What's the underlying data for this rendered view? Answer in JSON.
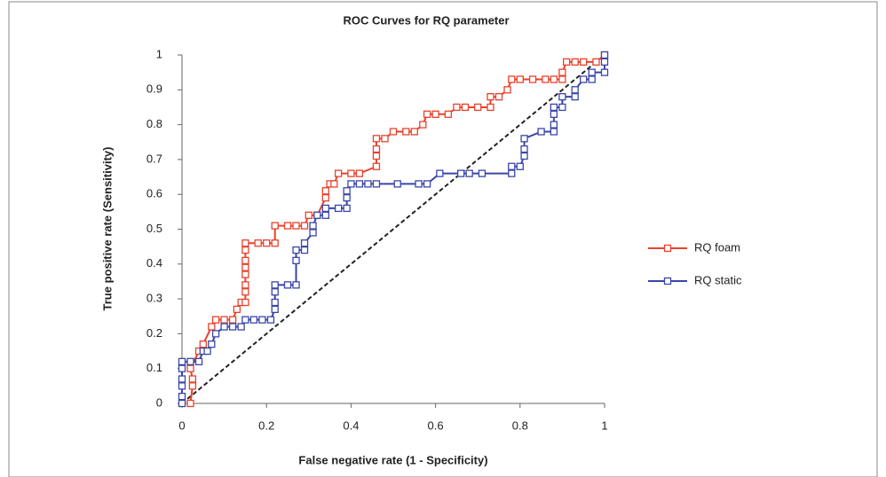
{
  "chart_data": {
    "type": "line",
    "title": "ROC Curves for RQ parameter",
    "x_label": "False negative rate (1 - Specificity)",
    "y_label": "True positive rate (Sensitivity)",
    "xlim": [
      0,
      1
    ],
    "ylim": [
      0,
      1
    ],
    "xticks": [
      0,
      0.2,
      0.4,
      0.6,
      0.8,
      1
    ],
    "yticks": [
      0,
      0.1,
      0.2,
      0.3,
      0.4,
      0.5,
      0.6,
      0.7,
      0.8,
      0.9,
      1
    ],
    "legend": "right",
    "series": [
      {
        "name": "RQ foam",
        "color": "#e8422c",
        "x": [
          0.02,
          0.025,
          0.025,
          0.02,
          0.04,
          0.05,
          0.07,
          0.08,
          0.1,
          0.12,
          0.13,
          0.14,
          0.15,
          0.15,
          0.15,
          0.15,
          0.15,
          0.15,
          0.15,
          0.15,
          0.18,
          0.2,
          0.22,
          0.22,
          0.25,
          0.27,
          0.29,
          0.3,
          0.32,
          0.34,
          0.34,
          0.35,
          0.36,
          0.37,
          0.4,
          0.42,
          0.46,
          0.46,
          0.46,
          0.46,
          0.48,
          0.5,
          0.53,
          0.55,
          0.57,
          0.58,
          0.6,
          0.63,
          0.65,
          0.67,
          0.7,
          0.73,
          0.73,
          0.75,
          0.77,
          0.78,
          0.8,
          0.83,
          0.86,
          0.88,
          0.9,
          0.9,
          0.91,
          0.93,
          0.95,
          0.98,
          1
        ],
        "values": [
          0,
          0.05,
          0.07,
          0.1,
          0.15,
          0.17,
          0.22,
          0.24,
          0.24,
          0.24,
          0.27,
          0.29,
          0.29,
          0.32,
          0.34,
          0.37,
          0.39,
          0.41,
          0.44,
          0.46,
          0.46,
          0.46,
          0.46,
          0.51,
          0.51,
          0.51,
          0.51,
          0.54,
          0.54,
          0.59,
          0.61,
          0.63,
          0.63,
          0.66,
          0.66,
          0.66,
          0.68,
          0.71,
          0.73,
          0.76,
          0.76,
          0.78,
          0.78,
          0.78,
          0.8,
          0.83,
          0.83,
          0.83,
          0.85,
          0.85,
          0.85,
          0.85,
          0.88,
          0.88,
          0.9,
          0.93,
          0.93,
          0.93,
          0.93,
          0.93,
          0.93,
          0.95,
          0.98,
          0.98,
          0.98,
          0.98,
          1
        ]
      },
      {
        "name": "RQ static",
        "color": "#3a46a8",
        "x": [
          0,
          0,
          0,
          0,
          0,
          0,
          0.02,
          0.04,
          0.05,
          0.06,
          0.07,
          0.08,
          0.1,
          0.12,
          0.14,
          0.15,
          0.17,
          0.19,
          0.21,
          0.22,
          0.22,
          0.22,
          0.22,
          0.25,
          0.27,
          0.27,
          0.27,
          0.29,
          0.29,
          0.31,
          0.31,
          0.32,
          0.34,
          0.34,
          0.37,
          0.39,
          0.39,
          0.39,
          0.4,
          0.42,
          0.44,
          0.46,
          0.51,
          0.56,
          0.58,
          0.61,
          0.66,
          0.68,
          0.71,
          0.78,
          0.78,
          0.8,
          0.81,
          0.81,
          0.81,
          0.85,
          0.88,
          0.88,
          0.88,
          0.88,
          0.9,
          0.9,
          0.93,
          0.93,
          0.95,
          0.97,
          0.97,
          1,
          1,
          1
        ],
        "values": [
          0,
          0.02,
          0.05,
          0.07,
          0.1,
          0.12,
          0.12,
          0.12,
          0.15,
          0.15,
          0.17,
          0.2,
          0.22,
          0.22,
          0.22,
          0.24,
          0.24,
          0.24,
          0.24,
          0.27,
          0.29,
          0.32,
          0.34,
          0.34,
          0.34,
          0.41,
          0.44,
          0.44,
          0.46,
          0.49,
          0.51,
          0.54,
          0.54,
          0.56,
          0.56,
          0.56,
          0.59,
          0.61,
          0.63,
          0.63,
          0.63,
          0.63,
          0.63,
          0.63,
          0.63,
          0.66,
          0.66,
          0.66,
          0.66,
          0.66,
          0.68,
          0.68,
          0.71,
          0.73,
          0.76,
          0.78,
          0.78,
          0.8,
          0.83,
          0.85,
          0.85,
          0.88,
          0.88,
          0.9,
          0.93,
          0.93,
          0.95,
          0.95,
          0.98,
          1
        ]
      }
    ]
  }
}
